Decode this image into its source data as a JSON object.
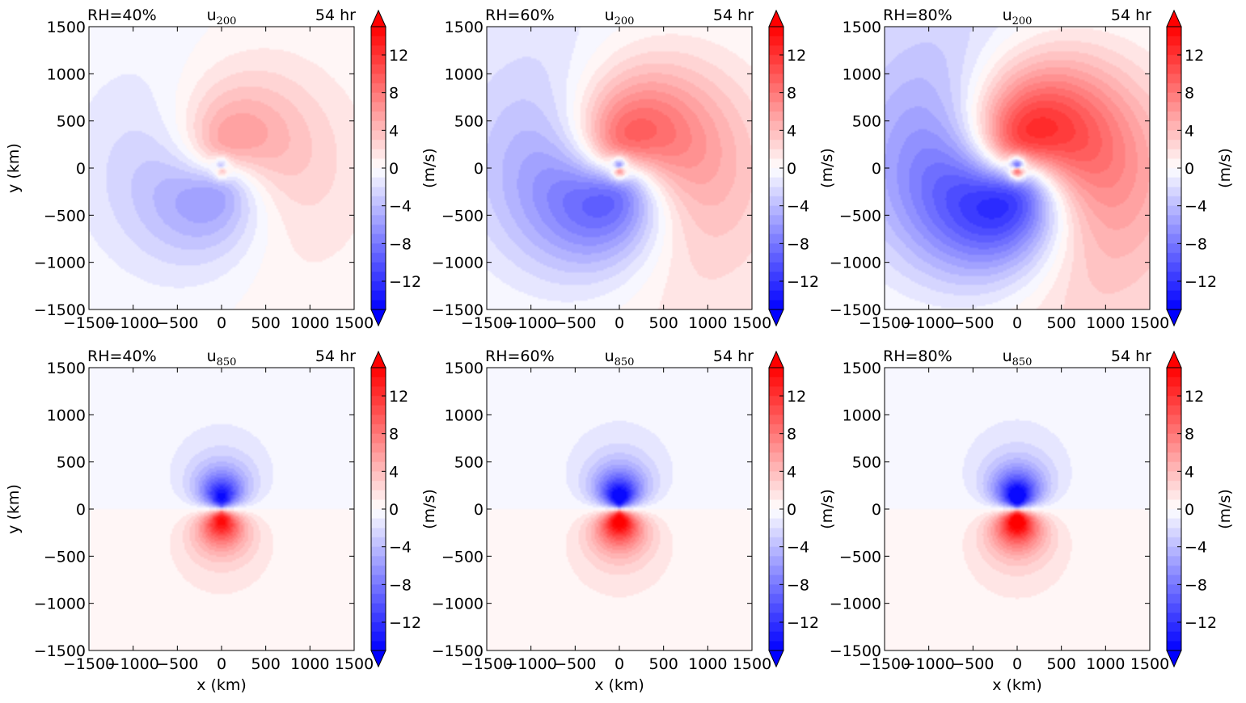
{
  "chart_data": {
    "type": "heatmap",
    "colorbar": {
      "label": "(m/s)",
      "ticks": [
        -12,
        -8,
        -4,
        0,
        4,
        8,
        12
      ],
      "range": [
        -15,
        15
      ],
      "colormap": "bwr",
      "extend": "both"
    },
    "axes": {
      "xlabel": "x (km)",
      "ylabel": "y (km)",
      "xlim": [
        -1500,
        1500
      ],
      "ylim": [
        -1500,
        1500
      ],
      "xticks": [
        -1500,
        -1000,
        -500,
        0,
        500,
        1000,
        1500
      ],
      "yticks": [
        -1500,
        -1000,
        -500,
        0,
        500,
        1000,
        1500
      ]
    },
    "panels": [
      {
        "rh": "RH=40%",
        "var": "u",
        "level": "200",
        "time": "54 hr",
        "strength": 0.45,
        "mode": "upper"
      },
      {
        "rh": "RH=60%",
        "var": "u",
        "level": "200",
        "time": "54 hr",
        "strength": 0.75,
        "mode": "upper"
      },
      {
        "rh": "RH=80%",
        "var": "u",
        "level": "200",
        "time": "54 hr",
        "strength": 1.0,
        "mode": "upper"
      },
      {
        "rh": "RH=40%",
        "var": "u",
        "level": "850",
        "time": "54 hr",
        "strength": 0.85,
        "mode": "lower"
      },
      {
        "rh": "RH=60%",
        "var": "u",
        "level": "850",
        "time": "54 hr",
        "strength": 0.95,
        "mode": "lower"
      },
      {
        "rh": "RH=80%",
        "var": "u",
        "level": "850",
        "time": "54 hr",
        "strength": 1.0,
        "mode": "lower"
      }
    ]
  }
}
